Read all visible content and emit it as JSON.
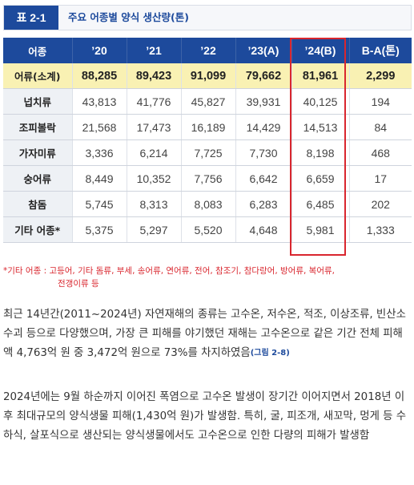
{
  "title": {
    "badge": "표 2-1",
    "text": "주요 어종별 양식 생산량(톤)"
  },
  "table": {
    "headers": [
      "어종",
      "’20",
      "’21",
      "’22",
      "’23(A)",
      "’24(B)",
      "B-A(톤)"
    ],
    "rows": [
      [
        "어류(소계)",
        "88,285",
        "89,423",
        "91,099",
        "79,662",
        "81,961",
        "2,299"
      ],
      [
        "넙치류",
        "43,813",
        "41,776",
        "45,827",
        "39,931",
        "40,125",
        "194"
      ],
      [
        "조피볼락",
        "21,568",
        "17,473",
        "16,189",
        "14,429",
        "14,513",
        "84"
      ],
      [
        "가자미류",
        "3,336",
        "6,214",
        "7,725",
        "7,730",
        "8,198",
        "468"
      ],
      [
        "숭어류",
        "8,449",
        "10,352",
        "7,756",
        "6,642",
        "6,659",
        "17"
      ],
      [
        "참돔",
        "5,745",
        "8,313",
        "8,083",
        "6,283",
        "6,485",
        "202"
      ],
      [
        "기타 어종*",
        "5,375",
        "5,297",
        "5,520",
        "4,648",
        "5,981",
        "1,333"
      ]
    ]
  },
  "footnote": {
    "line1": "*기타 어종 : 고등어, 기타 돔류, 부세, 송어류, 연어류, 전어, 참조기, 참다랑어, 방어류, 복어류,",
    "line2": "전갱이류 등"
  },
  "paragraphs": {
    "p1_text": "최근 14년간(2011~2024년) 자연재해의 종류는 고수온, 저수온, 적조, 이상조류, 빈산소수괴 등으로 다양했으며, 가장 큰 피해를 야기했던 재해는 고수온으로 같은 기간 전체 피해액 4,763억 원 중 3,472억 원으로 73%를 차지하였음",
    "p1_ref": "(그림 2-8)",
    "p2_text": "2024년에는 9월 하순까지 이어진 폭염으로 고수온 발생이 장기간 이어지면서 2018년 이후 최대규모의 양식생물 피해(1,430억 원)가 발생함. 특히, 굴, 피조개, 새꼬막, 멍게 등 수하식, 살포식으로 생산되는 양식생물에서도 고수온으로 인한 다량의 피해가 발생함"
  },
  "colors": {
    "header_bg": "#1d4a9c",
    "total_row_bg": "#f9f1b3",
    "highlight_border": "#d9262e",
    "footnote": "#d9262e"
  }
}
